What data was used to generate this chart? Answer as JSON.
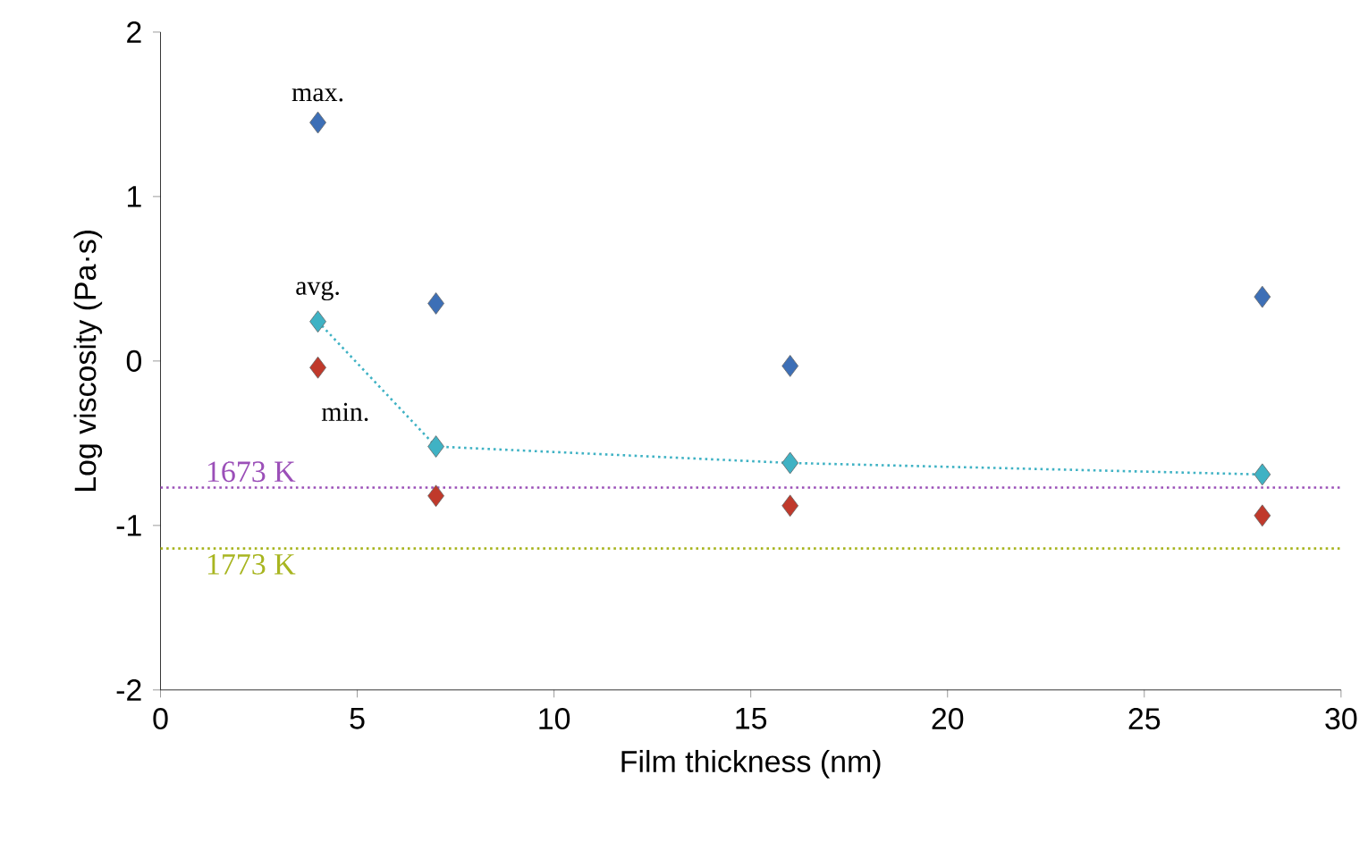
{
  "chart_data": {
    "type": "scatter",
    "xlabel": "Film thickness (nm)",
    "ylabel": "Log viscosity (Pa·s)",
    "xlim": [
      0,
      30
    ],
    "ylim": [
      -2,
      2
    ],
    "xticks": [
      0,
      5,
      10,
      15,
      20,
      25,
      30
    ],
    "yticks": [
      -2,
      -1,
      0,
      1,
      2
    ],
    "grid": false,
    "marker": "diamond",
    "series": [
      {
        "name": "max.",
        "color": "#3d6fb6",
        "x": [
          4,
          7,
          16,
          28
        ],
        "values": [
          1.45,
          0.35,
          -0.03,
          0.39
        ]
      },
      {
        "name": "avg.",
        "type": "line",
        "line_style": "dotted",
        "color": "#3fb2c4",
        "x": [
          4,
          7,
          16,
          28
        ],
        "values": [
          0.24,
          -0.52,
          -0.62,
          -0.69
        ]
      },
      {
        "name": "min.",
        "color": "#c0392b",
        "x": [
          4,
          7,
          16,
          28
        ],
        "values": [
          -0.04,
          -0.82,
          -0.88,
          -0.94
        ]
      }
    ],
    "ref_lines": [
      {
        "axis": "y",
        "value": -0.77,
        "label": "1673 K",
        "color": "#9b4fb8",
        "line_style": "dotted"
      },
      {
        "axis": "y",
        "value": -1.14,
        "label": "1773 K",
        "color": "#a8b520",
        "line_style": "dotted"
      }
    ]
  }
}
